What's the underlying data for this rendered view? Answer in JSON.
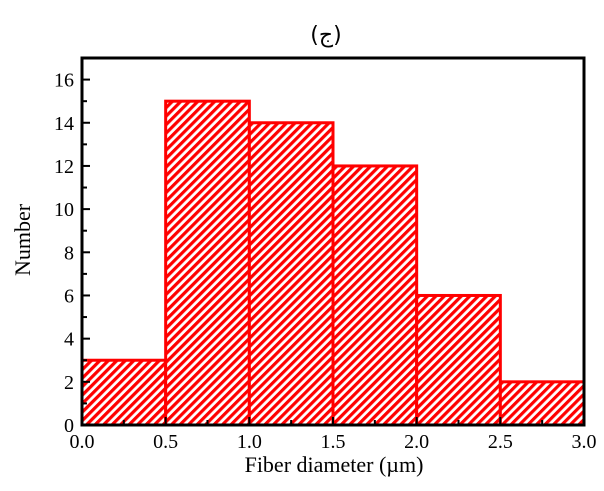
{
  "chart_data": {
    "type": "bar",
    "title": "(ج)",
    "xlabel": "Fiber diameter (µm)",
    "ylabel": "Number",
    "xlim": [
      0.0,
      3.0
    ],
    "ylim": [
      0,
      17
    ],
    "bins": [
      {
        "x0": 0.0,
        "x1": 0.5,
        "value": 3
      },
      {
        "x0": 0.5,
        "x1": 1.0,
        "value": 15
      },
      {
        "x0": 1.0,
        "x1": 1.5,
        "value": 14
      },
      {
        "x0": 1.5,
        "x1": 2.0,
        "value": 12
      },
      {
        "x0": 2.0,
        "x1": 2.5,
        "value": 6
      },
      {
        "x0": 2.5,
        "x1": 3.0,
        "value": 2
      }
    ],
    "x_ticks": [
      "0.0",
      "0.5",
      "1.0",
      "1.5",
      "2.0",
      "2.5",
      "3.0"
    ],
    "y_ticks": [
      "0",
      "2",
      "4",
      "6",
      "8",
      "10",
      "12",
      "14",
      "16"
    ],
    "bar_color": "#ff0000",
    "bar_fill": "hatched",
    "grid": false,
    "legend": "none"
  }
}
